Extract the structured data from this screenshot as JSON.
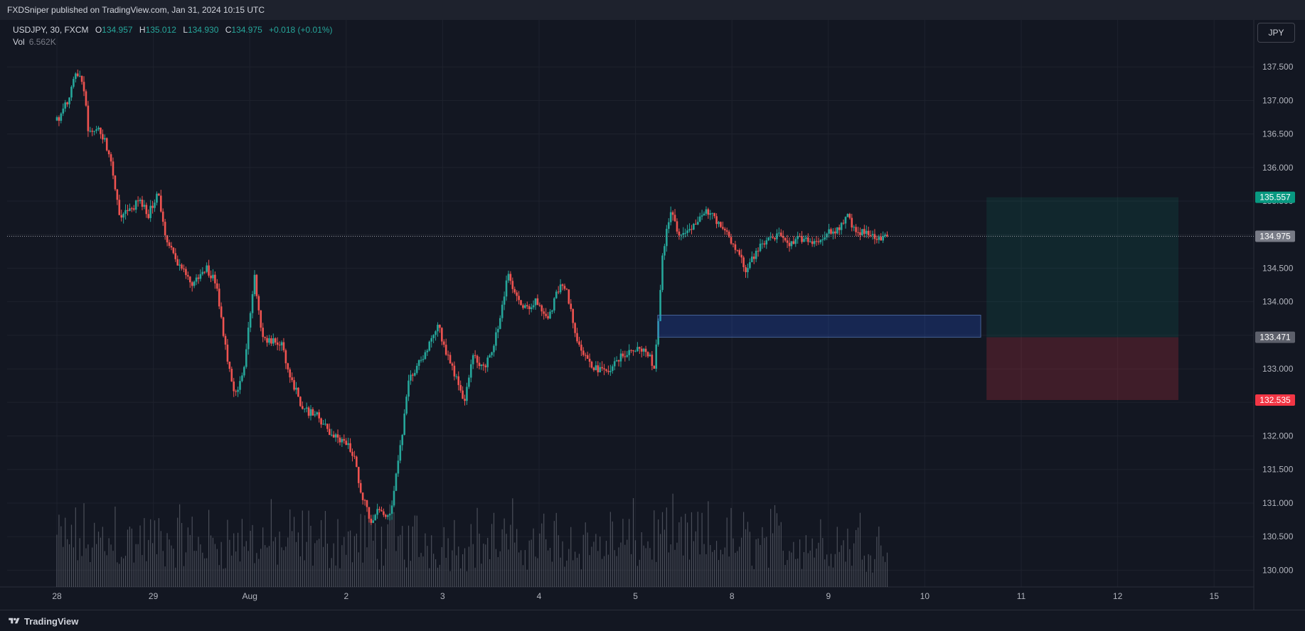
{
  "header": {
    "published_text": "FXDSniper published on TradingView.com, Jan 31, 2024 10:15 UTC"
  },
  "legend": {
    "symbol": "USDJPY, 30, FXCM",
    "open_label": "O",
    "open": "134.957",
    "high_label": "H",
    "high": "135.012",
    "low_label": "L",
    "low": "134.930",
    "close_label": "C",
    "close": "134.975",
    "change": "+0.018 (+0.01%)",
    "vol_label": "Vol",
    "vol_value": "6.562K"
  },
  "currency_button": "JPY",
  "footer": {
    "logo_text": "TradingView"
  },
  "colors": {
    "background": "#131722",
    "grid": "#1e222d",
    "up": "#26a69a",
    "down": "#ef5350",
    "volume": "#787b86",
    "current_price": "#787b86",
    "target": "#089981",
    "stop": "#f23645",
    "zone": "#2962ff"
  },
  "chart_data": {
    "type": "candlestick",
    "symbol": "USDJPY",
    "interval": "30",
    "ylim": [
      129.75,
      138.2
    ],
    "y_ticks": [
      "130.000",
      "130.500",
      "131.000",
      "131.500",
      "132.000",
      "132.500",
      "133.000",
      "133.500",
      "134.000",
      "134.500",
      "135.000",
      "135.500",
      "136.000",
      "136.500",
      "137.000",
      "137.500"
    ],
    "x_ticks": [
      "28",
      "29",
      "Aug",
      "2",
      "3",
      "4",
      "5",
      "8",
      "9",
      "10",
      "11",
      "12",
      "15"
    ],
    "price_path": [
      [
        0.0,
        136.7
      ],
      [
        0.12,
        137.0
      ],
      [
        0.2,
        137.4
      ],
      [
        0.27,
        137.3
      ],
      [
        0.33,
        136.5
      ],
      [
        0.45,
        136.55
      ],
      [
        0.55,
        136.2
      ],
      [
        0.65,
        135.3
      ],
      [
        0.75,
        135.35
      ],
      [
        0.85,
        135.5
      ],
      [
        0.95,
        135.3
      ],
      [
        1.05,
        135.65
      ],
      [
        1.13,
        134.9
      ],
      [
        1.25,
        134.6
      ],
      [
        1.4,
        134.25
      ],
      [
        1.55,
        134.5
      ],
      [
        1.65,
        134.3
      ],
      [
        1.75,
        133.3
      ],
      [
        1.85,
        132.6
      ],
      [
        1.95,
        133.1
      ],
      [
        2.05,
        134.4
      ],
      [
        2.12,
        133.5
      ],
      [
        2.2,
        133.4
      ],
      [
        2.32,
        133.4
      ],
      [
        2.42,
        132.9
      ],
      [
        2.55,
        132.4
      ],
      [
        2.7,
        132.3
      ],
      [
        2.85,
        132.0
      ],
      [
        3.0,
        131.9
      ],
      [
        3.08,
        131.7
      ],
      [
        3.15,
        131.2
      ],
      [
        3.25,
        130.75
      ],
      [
        3.35,
        130.9
      ],
      [
        3.45,
        130.8
      ],
      [
        3.55,
        131.7
      ],
      [
        3.65,
        132.8
      ],
      [
        3.75,
        133.1
      ],
      [
        3.85,
        133.3
      ],
      [
        3.95,
        133.7
      ],
      [
        4.02,
        133.3
      ],
      [
        4.12,
        132.95
      ],
      [
        4.22,
        132.5
      ],
      [
        4.32,
        133.2
      ],
      [
        4.42,
        133.0
      ],
      [
        4.52,
        133.3
      ],
      [
        4.6,
        133.8
      ],
      [
        4.68,
        134.4
      ],
      [
        4.78,
        134.0
      ],
      [
        4.88,
        133.9
      ],
      [
        4.97,
        134.0
      ],
      [
        5.1,
        133.75
      ],
      [
        5.2,
        134.2
      ],
      [
        5.28,
        134.2
      ],
      [
        5.38,
        133.5
      ],
      [
        5.48,
        133.2
      ],
      [
        5.58,
        133.0
      ],
      [
        5.7,
        132.95
      ],
      [
        5.8,
        133.1
      ],
      [
        5.9,
        133.25
      ],
      [
        6.0,
        133.3
      ],
      [
        6.12,
        133.25
      ],
      [
        6.2,
        133.0
      ],
      [
        6.28,
        134.7
      ],
      [
        6.36,
        135.35
      ],
      [
        6.45,
        135.0
      ],
      [
        6.55,
        135.1
      ],
      [
        6.65,
        135.2
      ],
      [
        6.75,
        135.35
      ],
      [
        6.85,
        135.2
      ],
      [
        6.95,
        135.0
      ],
      [
        7.05,
        134.8
      ],
      [
        7.15,
        134.45
      ],
      [
        7.25,
        134.75
      ],
      [
        7.35,
        134.9
      ],
      [
        7.5,
        135.0
      ],
      [
        7.6,
        134.85
      ],
      [
        7.72,
        134.95
      ],
      [
        7.85,
        134.9
      ],
      [
        7.98,
        135.0
      ],
      [
        8.1,
        135.1
      ],
      [
        8.2,
        135.25
      ],
      [
        8.3,
        135.05
      ],
      [
        8.42,
        135.0
      ],
      [
        8.52,
        134.95
      ],
      [
        8.61,
        134.975
      ]
    ],
    "candle_span": [
      0.0,
      8.61
    ],
    "candle_count": 400,
    "volume": {
      "typical_range": [
        0.25,
        0.75
      ],
      "spikes": [
        [
          0.0,
          0.7
        ],
        [
          0.6,
          0.65
        ],
        [
          3.25,
          0.65
        ],
        [
          4.65,
          0.6
        ],
        [
          6.27,
          1.0
        ],
        [
          6.3,
          0.45
        ],
        [
          1.6,
          0.45
        ],
        [
          0.15,
          0.9
        ]
      ]
    },
    "current_price": {
      "value": 134.975,
      "label": "134.975"
    },
    "position": {
      "type": "long",
      "x_start": 9.64,
      "x_end": 11.63,
      "target": {
        "value": 135.557,
        "label": "135.557"
      },
      "entry": {
        "value": 133.471,
        "label": "133.471"
      },
      "stop": {
        "value": 132.535,
        "label": "132.535"
      }
    },
    "demand_zone": {
      "x_start": 6.23,
      "x_end": 9.58,
      "low": 133.471,
      "high": 133.8
    }
  }
}
